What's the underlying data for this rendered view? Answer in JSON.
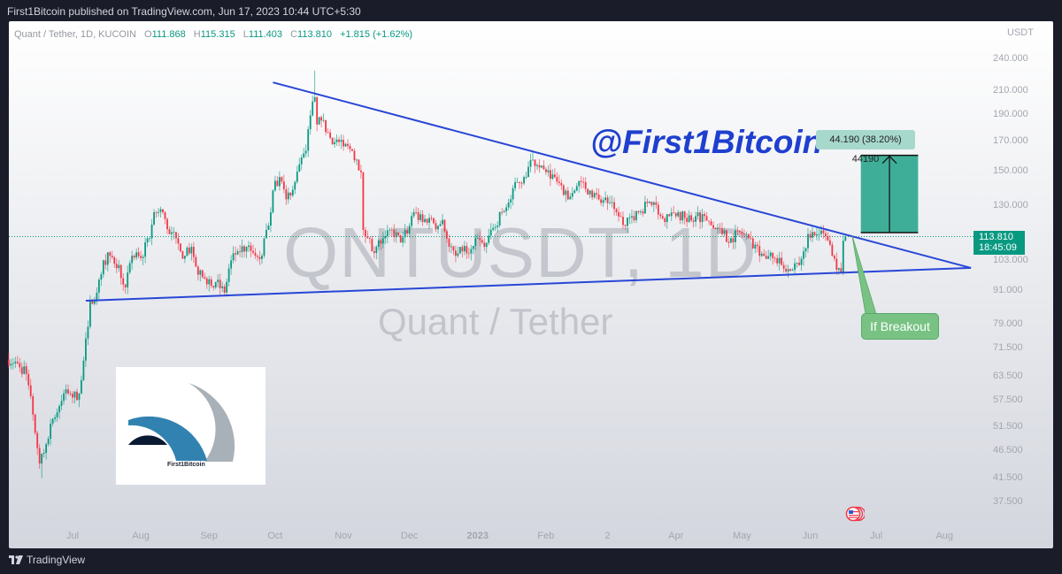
{
  "topbar": {
    "text": "First1Bitcoin published on TradingView.com, Jun 17, 2023 10:44 UTC+5:30"
  },
  "legend": {
    "symbol": "Quant / Tether, 1D, KUCOIN",
    "open_label": "O",
    "open": "111.868",
    "high_label": "H",
    "high": "115.315",
    "low_label": "L",
    "low": "111.403",
    "close_label": "C",
    "close": "113.810",
    "change": "+1.815 (+1.62%)"
  },
  "watermark": {
    "symbol": "QNTUSDT, 1D",
    "name": "Quant / Tether"
  },
  "annotation_handle": "@First1Bitcoin",
  "price_axis": {
    "currency": "USDT",
    "current_price": "113.810",
    "countdown": "18:45:09"
  },
  "footer": {
    "brand": "TradingView"
  },
  "logo": {
    "text": "First1Bitcoin"
  },
  "colors": {
    "up": "#089981",
    "down": "#f23645",
    "trendline": "#2846d6",
    "measure": "#3fae98",
    "callout": "#78c384",
    "handle_text": "#1f3fcf"
  },
  "chart_data": {
    "type": "candlestick",
    "title": "",
    "y_scale": "log",
    "ylim": [
      36,
      260
    ],
    "grid": false,
    "y_ticks": [
      240,
      210,
      190,
      170,
      150,
      130,
      103,
      91,
      79,
      71.5,
      63.5,
      57.5,
      51.5,
      46.5,
      41.5,
      37.5
    ],
    "y_tick_labels": [
      "240.000",
      "210.000",
      "190.000",
      "170.000",
      "150.000",
      "130.000",
      "103.000",
      "91.000",
      "79.000",
      "71.500",
      "63.500",
      "57.500",
      "51.500",
      "46.500",
      "41.500",
      "37.500"
    ],
    "x_ticks": [
      {
        "date": "2022-07-01",
        "label": "Jul"
      },
      {
        "date": "2022-08-01",
        "label": "Aug"
      },
      {
        "date": "2022-09-01",
        "label": "Sep"
      },
      {
        "date": "2022-10-01",
        "label": "Oct"
      },
      {
        "date": "2022-11-01",
        "label": "Nov"
      },
      {
        "date": "2022-12-01",
        "label": "Dec"
      },
      {
        "date": "2023-01-01",
        "label": "2023",
        "bold": true
      },
      {
        "date": "2023-02-01",
        "label": "Feb"
      },
      {
        "date": "2023-03-01",
        "label": "2"
      },
      {
        "date": "2023-04-01",
        "label": "Apr"
      },
      {
        "date": "2023-05-01",
        "label": "May"
      },
      {
        "date": "2023-06-01",
        "label": "Jun"
      },
      {
        "date": "2023-07-01",
        "label": "Jul"
      },
      {
        "date": "2023-08-01",
        "label": "Aug"
      }
    ],
    "approx_closes": [
      [
        "2022-06-02",
        68
      ],
      [
        "2022-06-06",
        67
      ],
      [
        "2022-06-10",
        64
      ],
      [
        "2022-06-13",
        54
      ],
      [
        "2022-06-16",
        44
      ],
      [
        "2022-06-18",
        46
      ],
      [
        "2022-06-21",
        52
      ],
      [
        "2022-06-25",
        56
      ],
      [
        "2022-06-28",
        60
      ],
      [
        "2022-07-01",
        58
      ],
      [
        "2022-07-04",
        59
      ],
      [
        "2022-07-08",
        78
      ],
      [
        "2022-07-09",
        87
      ],
      [
        "2022-07-12",
        90
      ],
      [
        "2022-07-15",
        103
      ],
      [
        "2022-07-18",
        105
      ],
      [
        "2022-07-22",
        101
      ],
      [
        "2022-07-25",
        92
      ],
      [
        "2022-07-28",
        105
      ],
      [
        "2022-08-01",
        104
      ],
      [
        "2022-08-05",
        113
      ],
      [
        "2022-08-07",
        126
      ],
      [
        "2022-08-11",
        126
      ],
      [
        "2022-08-14",
        115
      ],
      [
        "2022-08-17",
        113
      ],
      [
        "2022-08-19",
        107
      ],
      [
        "2022-08-21",
        105
      ],
      [
        "2022-08-24",
        109
      ],
      [
        "2022-08-27",
        97
      ],
      [
        "2022-08-30",
        95.5
      ],
      [
        "2022-09-04",
        94
      ],
      [
        "2022-09-08",
        90
      ],
      [
        "2022-09-11",
        103
      ],
      [
        "2022-09-14",
        107
      ],
      [
        "2022-09-18",
        109
      ],
      [
        "2022-09-22",
        105
      ],
      [
        "2022-09-25",
        105
      ],
      [
        "2022-09-27",
        117
      ],
      [
        "2022-09-29",
        126
      ],
      [
        "2022-09-30",
        138
      ],
      [
        "2022-10-03",
        146
      ],
      [
        "2022-10-06",
        133
      ],
      [
        "2022-10-10",
        143
      ],
      [
        "2022-10-12",
        154
      ],
      [
        "2022-10-15",
        163
      ],
      [
        "2022-10-17",
        189
      ],
      [
        "2022-10-19",
        204
      ],
      [
        "2022-10-20",
        182
      ],
      [
        "2022-10-22",
        185
      ],
      [
        "2022-10-25",
        176
      ],
      [
        "2022-10-28",
        169
      ],
      [
        "2022-11-01",
        166
      ],
      [
        "2022-11-05",
        163
      ],
      [
        "2022-11-07",
        157
      ],
      [
        "2022-11-09",
        149
      ],
      [
        "2022-11-10",
        117
      ],
      [
        "2022-11-12",
        113
      ],
      [
        "2022-11-14",
        107
      ],
      [
        "2022-11-16",
        109
      ],
      [
        "2022-11-19",
        113
      ],
      [
        "2022-11-23",
        117
      ],
      [
        "2022-11-27",
        111
      ],
      [
        "2022-12-01",
        119
      ],
      [
        "2022-12-03",
        126
      ],
      [
        "2022-12-07",
        121
      ],
      [
        "2022-12-10",
        123
      ],
      [
        "2022-12-14",
        119
      ],
      [
        "2022-12-16",
        122
      ],
      [
        "2022-12-19",
        109
      ],
      [
        "2022-12-22",
        105
      ],
      [
        "2022-12-25",
        107
      ],
      [
        "2022-12-29",
        108
      ],
      [
        "2022-12-31",
        113
      ],
      [
        "2023-01-04",
        109
      ],
      [
        "2023-01-08",
        118
      ],
      [
        "2023-01-12",
        126
      ],
      [
        "2023-01-16",
        133
      ],
      [
        "2023-01-19",
        143
      ],
      [
        "2023-01-22",
        146
      ],
      [
        "2023-01-26",
        157
      ],
      [
        "2023-01-29",
        152
      ],
      [
        "2023-02-01",
        149
      ],
      [
        "2023-02-05",
        146
      ],
      [
        "2023-02-08",
        141
      ],
      [
        "2023-02-11",
        133
      ],
      [
        "2023-02-14",
        138
      ],
      [
        "2023-02-17",
        143
      ],
      [
        "2023-02-21",
        138
      ],
      [
        "2023-02-25",
        133
      ],
      [
        "2023-03-01",
        131
      ],
      [
        "2023-03-05",
        126
      ],
      [
        "2023-03-09",
        119
      ],
      [
        "2023-03-12",
        124
      ],
      [
        "2023-03-15",
        126
      ],
      [
        "2023-03-19",
        131
      ],
      [
        "2023-03-23",
        130
      ],
      [
        "2023-03-25",
        124
      ],
      [
        "2023-03-29",
        124
      ],
      [
        "2023-04-02",
        126
      ],
      [
        "2023-04-06",
        121
      ],
      [
        "2023-04-10",
        124
      ],
      [
        "2023-04-14",
        124
      ],
      [
        "2023-04-18",
        118
      ],
      [
        "2023-04-22",
        115
      ],
      [
        "2023-04-26",
        113
      ],
      [
        "2023-04-30",
        116
      ],
      [
        "2023-05-04",
        113
      ],
      [
        "2023-05-07",
        110
      ],
      [
        "2023-05-11",
        105
      ],
      [
        "2023-05-15",
        104
      ],
      [
        "2023-05-19",
        101
      ],
      [
        "2023-05-24",
        99
      ],
      [
        "2023-05-27",
        101
      ],
      [
        "2023-05-29",
        107
      ],
      [
        "2023-05-31",
        115
      ],
      [
        "2023-06-02",
        116
      ],
      [
        "2023-06-05",
        115
      ],
      [
        "2023-06-08",
        114
      ],
      [
        "2023-06-11",
        105
      ],
      [
        "2023-06-13",
        99
      ],
      [
        "2023-06-15",
        98
      ],
      [
        "2023-06-16",
        111.868
      ],
      [
        "2023-06-17",
        113.81
      ]
    ],
    "extreme_wicks": [
      {
        "date": "2022-10-19",
        "high": 228
      },
      {
        "date": "2022-06-17",
        "low": 41.4
      },
      {
        "date": "2023-01-26",
        "high": 163
      }
    ],
    "last_candle": {
      "date": "2023-06-17",
      "open": 111.868,
      "high": 115.315,
      "low": 111.403,
      "close": 113.81
    },
    "current_price": 113.81,
    "drawings": {
      "upper_trendline": {
        "from": [
          "2022-09-30",
          217
        ],
        "to": [
          "2023-08-13",
          99.8
        ]
      },
      "lower_trendline": {
        "from": [
          "2022-07-07",
          87
        ],
        "to": [
          "2023-08-13",
          99.8
        ]
      },
      "price_range": {
        "from_date": "2023-06-24",
        "to_date": "2023-07-20",
        "from_price": 115.7,
        "to_price": 159.9,
        "label": "44.190 (38.20%) 44190"
      },
      "callout": {
        "text": "If Breakout",
        "anchor": [
          "2023-06-20",
          114.5
        ]
      }
    }
  }
}
